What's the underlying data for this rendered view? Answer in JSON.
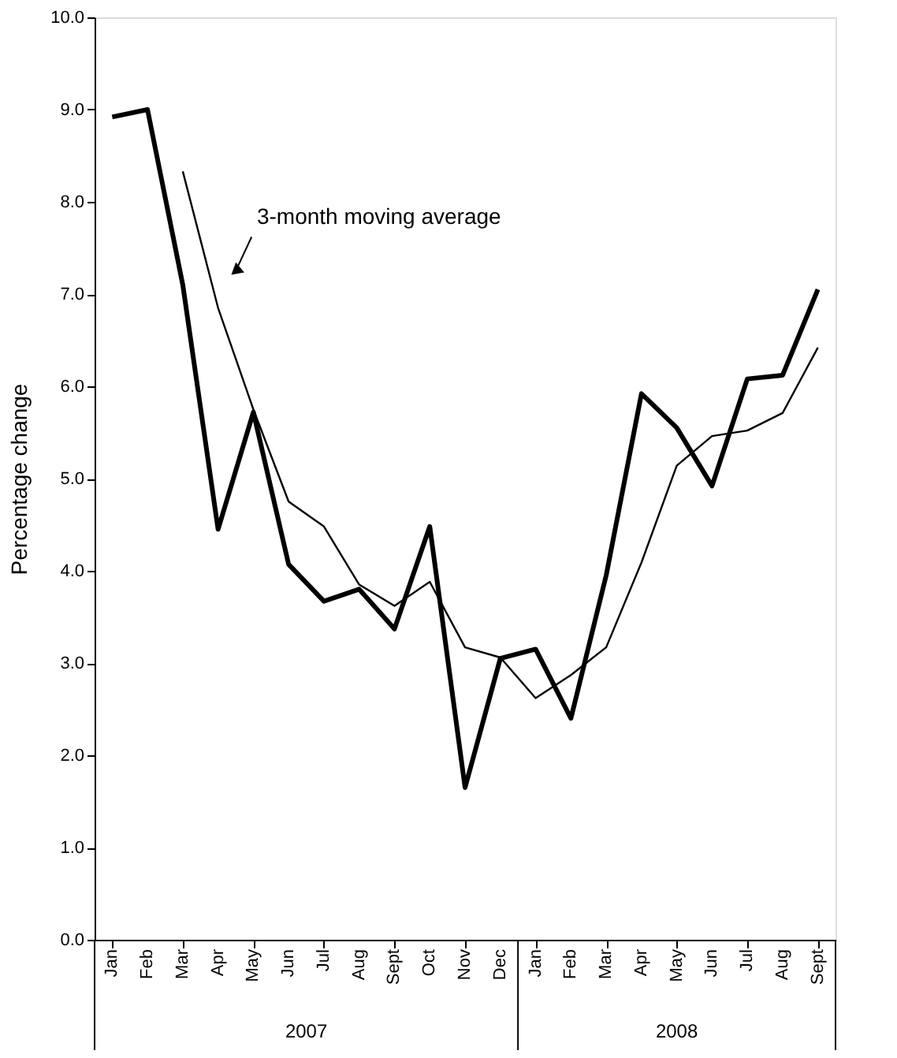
{
  "chart_data": {
    "type": "line",
    "ylabel": "Percentage change",
    "categories": [
      "Jan",
      "Feb",
      "Mar",
      "Apr",
      "May",
      "Jun",
      "Jul",
      "Aug",
      "Sept",
      "Oct",
      "Nov",
      "Dec",
      "Jan",
      "Feb",
      "Mar",
      "Apr",
      "May",
      "Jun",
      "Jul",
      "Aug",
      "Sept"
    ],
    "series": [
      {
        "color": "#000000",
        "values": [
          8.92,
          9.0,
          7.1,
          4.45,
          5.72,
          4.07,
          3.67,
          3.8,
          3.37,
          4.48,
          1.65,
          3.05,
          3.15,
          2.4,
          3.95,
          5.92,
          5.55,
          4.92,
          6.08,
          6.12,
          7.05
        ]
      },
      {
        "name": "3-month moving average",
        "color": "#000000",
        "values": [
          null,
          null,
          8.33,
          6.85,
          5.75,
          4.75,
          4.48,
          3.85,
          3.62,
          3.88,
          3.17,
          3.06,
          2.62,
          2.87,
          3.17,
          4.09,
          5.14,
          5.46,
          5.52,
          5.71,
          6.42
        ]
      }
    ],
    "annotations": [
      "2007",
      "2008"
    ],
    "ylim": [
      0,
      10
    ],
    "yticks": [
      {
        "value": 0,
        "label": "0.0"
      },
      {
        "value": 1,
        "label": "1.0"
      },
      {
        "value": 2,
        "label": "2.0"
      },
      {
        "value": 3,
        "label": "3.0"
      },
      {
        "value": 4,
        "label": "4.0"
      },
      {
        "value": 5,
        "label": "5.0"
      },
      {
        "value": 6,
        "label": "6.0"
      },
      {
        "value": 7,
        "label": "7.0"
      },
      {
        "value": 8,
        "label": "8.0"
      },
      {
        "value": 9,
        "label": "9.0"
      },
      {
        "value": 10,
        "label": "10.0"
      }
    ],
    "grid": false,
    "legend": false,
    "marker": "none",
    "line_style": "solid"
  }
}
